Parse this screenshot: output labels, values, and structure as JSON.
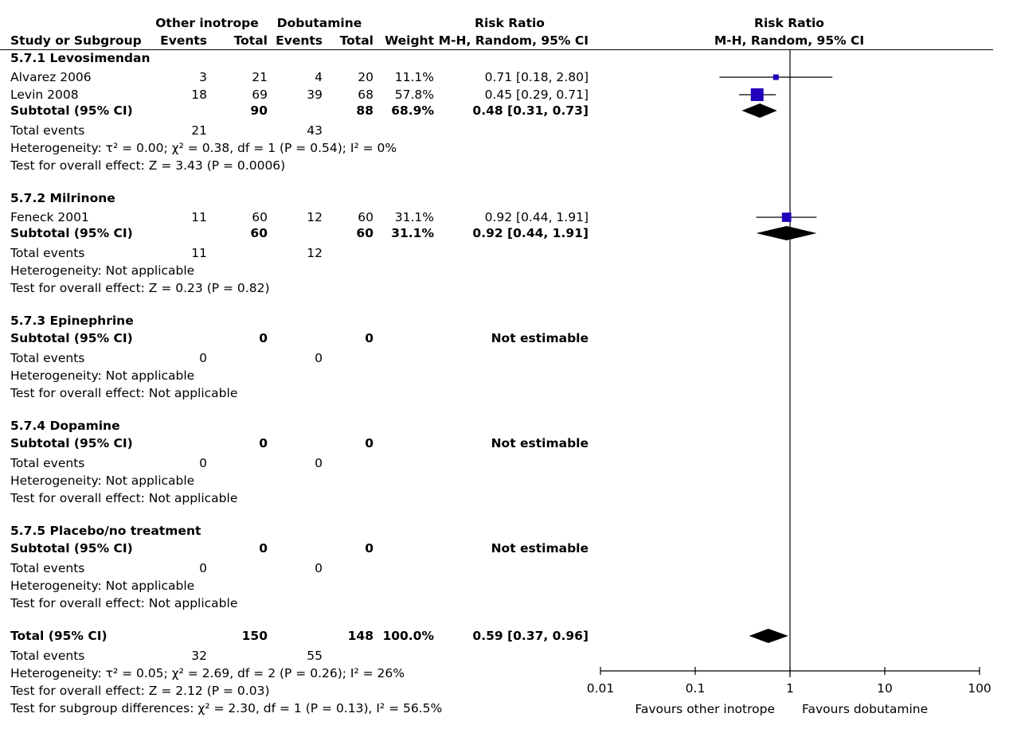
{
  "headers": {
    "group1": "Other inotrope",
    "group2": "Dobutamine",
    "rr_title": "Risk Ratio",
    "study": "Study or Subgroup",
    "events1": "Events",
    "total1": "Total",
    "events2": "Events",
    "total2": "Total",
    "weight": "Weight",
    "method": "M-H, Random, 95% CI",
    "plot_title": "Risk Ratio",
    "plot_method": "M-H, Random, 95% CI"
  },
  "subgroups": [
    {
      "title": "5.7.1 Levosimendan",
      "studies": [
        {
          "name": "Alvarez 2006",
          "e1": "3",
          "t1": "21",
          "e2": "4",
          "t2": "20",
          "weight": "11.1%",
          "ci": "0.71 [0.18, 2.80]"
        },
        {
          "name": "Levin 2008",
          "e1": "18",
          "t1": "69",
          "e2": "39",
          "t2": "68",
          "weight": "57.8%",
          "ci": "0.45 [0.29, 0.71]"
        }
      ],
      "subtotal": {
        "label": "Subtotal (95% CI)",
        "t1": "90",
        "t2": "88",
        "weight": "68.9%",
        "ci": "0.48 [0.31, 0.73]"
      },
      "total_events": {
        "label": "Total events",
        "e1": "21",
        "e2": "43"
      },
      "heterogeneity": "Heterogeneity: τ² = 0.00; χ² = 0.38, df = 1 (P = 0.54); I² = 0%",
      "overall": "Test for overall effect: Z = 3.43 (P = 0.0006)"
    },
    {
      "title": "5.7.2 Milrinone",
      "studies": [
        {
          "name": "Feneck 2001",
          "e1": "11",
          "t1": "60",
          "e2": "12",
          "t2": "60",
          "weight": "31.1%",
          "ci": "0.92 [0.44, 1.91]"
        }
      ],
      "subtotal": {
        "label": "Subtotal (95% CI)",
        "t1": "60",
        "t2": "60",
        "weight": "31.1%",
        "ci": "0.92 [0.44, 1.91]"
      },
      "total_events": {
        "label": "Total events",
        "e1": "11",
        "e2": "12"
      },
      "heterogeneity": "Heterogeneity: Not applicable",
      "overall": "Test for overall effect: Z = 0.23 (P = 0.82)"
    },
    {
      "title": "5.7.3 Epinephrine",
      "studies": [],
      "subtotal": {
        "label": "Subtotal (95% CI)",
        "t1": "0",
        "t2": "0",
        "weight": "",
        "ci": "Not estimable"
      },
      "total_events": {
        "label": "Total events",
        "e1": "0",
        "e2": "0"
      },
      "heterogeneity": "Heterogeneity: Not applicable",
      "overall": "Test for overall effect: Not applicable"
    },
    {
      "title": "5.7.4 Dopamine",
      "studies": [],
      "subtotal": {
        "label": "Subtotal (95% CI)",
        "t1": "0",
        "t2": "0",
        "weight": "",
        "ci": "Not estimable"
      },
      "total_events": {
        "label": "Total events",
        "e1": "0",
        "e2": "0"
      },
      "heterogeneity": "Heterogeneity: Not applicable",
      "overall": "Test for overall effect: Not applicable"
    },
    {
      "title": "5.7.5 Placebo/no treatment",
      "studies": [],
      "subtotal": {
        "label": "Subtotal (95% CI)",
        "t1": "0",
        "t2": "0",
        "weight": "",
        "ci": "Not estimable"
      },
      "total_events": {
        "label": "Total events",
        "e1": "0",
        "e2": "0"
      },
      "heterogeneity": "Heterogeneity: Not applicable",
      "overall": "Test for overall effect: Not applicable"
    }
  ],
  "total": {
    "label": "Total (95% CI)",
    "t1": "150",
    "t2": "148",
    "weight": "100.0%",
    "ci": "0.59 [0.37, 0.96]",
    "events_label": "Total events",
    "e1": "32",
    "e2": "55",
    "heterogeneity": "Heterogeneity: τ² = 0.05; χ² = 2.69, df = 2 (P = 0.26); I² = 26%",
    "overall": "Test for overall effect: Z = 2.12 (P = 0.03)",
    "subgroup_diff": "Test for subgroup differences: χ² = 2.30, df = 1 (P = 0.13), I² = 56.5%"
  },
  "chart_data": {
    "type": "forest",
    "scale": "log",
    "xlim": [
      0.01,
      100
    ],
    "ticks": [
      "0.01",
      "0.1",
      "1",
      "10",
      "100"
    ],
    "tick_values": [
      0.01,
      0.1,
      1,
      10,
      100
    ],
    "reference_line": 1,
    "favours_left": "Favours other inotrope",
    "favours_right": "Favours dobutamine",
    "square_color": "#2200bb",
    "diamond_color": "#000000",
    "studies": [
      {
        "name": "Alvarez 2006",
        "rr": 0.71,
        "lo": 0.18,
        "hi": 2.8,
        "weight": 11.1
      },
      {
        "name": "Levin 2008",
        "rr": 0.45,
        "lo": 0.29,
        "hi": 0.71,
        "weight": 57.8
      },
      {
        "name": "Feneck 2001",
        "rr": 0.92,
        "lo": 0.44,
        "hi": 1.91,
        "weight": 31.1
      }
    ],
    "diamonds": [
      {
        "name": "Subtotal 5.7.1 Levosimendan",
        "rr": 0.48,
        "lo": 0.31,
        "hi": 0.73
      },
      {
        "name": "Subtotal 5.7.2 Milrinone",
        "rr": 0.92,
        "lo": 0.44,
        "hi": 1.91
      },
      {
        "name": "Total (95% CI)",
        "rr": 0.59,
        "lo": 0.37,
        "hi": 0.96
      }
    ]
  }
}
